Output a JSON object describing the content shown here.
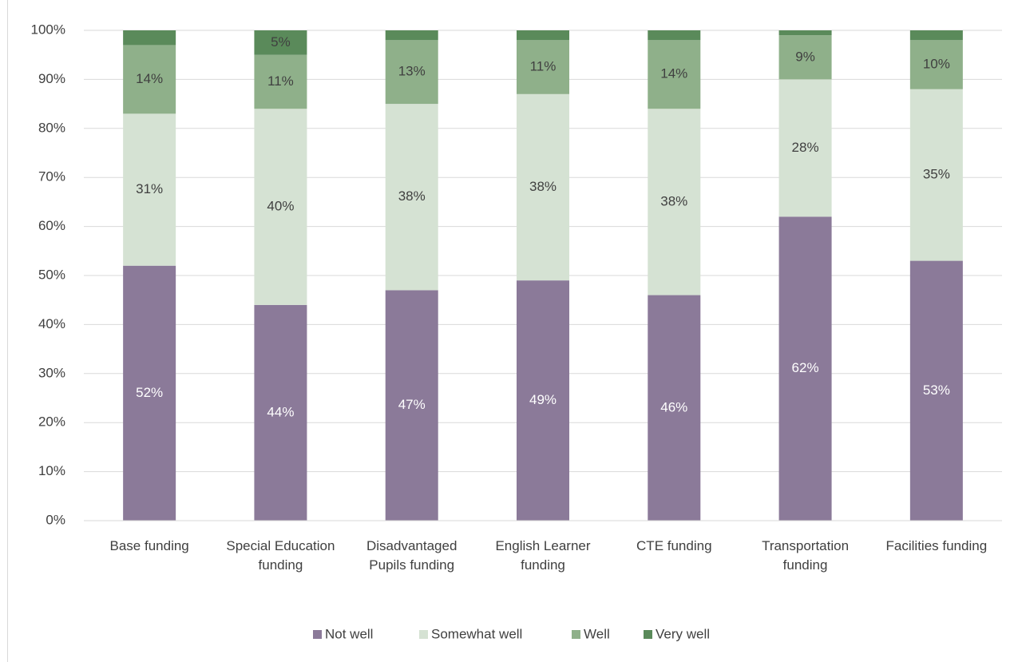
{
  "chart_data": {
    "type": "stacked_bar",
    "categories": [
      "Base funding",
      "Special Education funding",
      "Disadvantaged Pupils funding",
      "English Learner funding",
      "CTE funding",
      "Transportation funding",
      "Facilities funding"
    ],
    "series": [
      {
        "name": "Not well",
        "color": "#8b7a99",
        "values": [
          52,
          44,
          47,
          49,
          46,
          62,
          53
        ],
        "value_labels": [
          "52%",
          "44%",
          "47%",
          "49%",
          "46%",
          "62%",
          "53%"
        ]
      },
      {
        "name": "Somewhat well",
        "color": "#d5e2d3",
        "values": [
          31,
          40,
          38,
          38,
          38,
          28,
          35
        ],
        "value_labels": [
          "31%",
          "40%",
          "38%",
          "38%",
          "38%",
          "28%",
          "35%"
        ]
      },
      {
        "name": "Well",
        "color": "#8fb08a",
        "values": [
          14,
          11,
          13,
          11,
          14,
          9,
          10
        ],
        "value_labels": [
          "14%",
          "11%",
          "13%",
          "11%",
          "14%",
          "9%",
          "10%"
        ]
      },
      {
        "name": "Very well",
        "color": "#5a8a5a",
        "values": [
          3,
          5,
          2,
          2,
          2,
          1,
          2
        ],
        "value_labels": [
          null,
          "5%",
          null,
          null,
          null,
          null,
          null
        ]
      }
    ],
    "ylim": [
      0,
      100
    ],
    "yticks": [
      {
        "value": 0,
        "label": "0%"
      },
      {
        "value": 10,
        "label": "10%"
      },
      {
        "value": 20,
        "label": "20%"
      },
      {
        "value": 30,
        "label": "30%"
      },
      {
        "value": 40,
        "label": "40%"
      },
      {
        "value": 50,
        "label": "50%"
      },
      {
        "value": 60,
        "label": "60%"
      },
      {
        "value": 70,
        "label": "70%"
      },
      {
        "value": 80,
        "label": "80%"
      },
      {
        "value": 90,
        "label": "90%"
      },
      {
        "value": 100,
        "label": "100%"
      }
    ],
    "grid": true,
    "legend": "bottom"
  }
}
